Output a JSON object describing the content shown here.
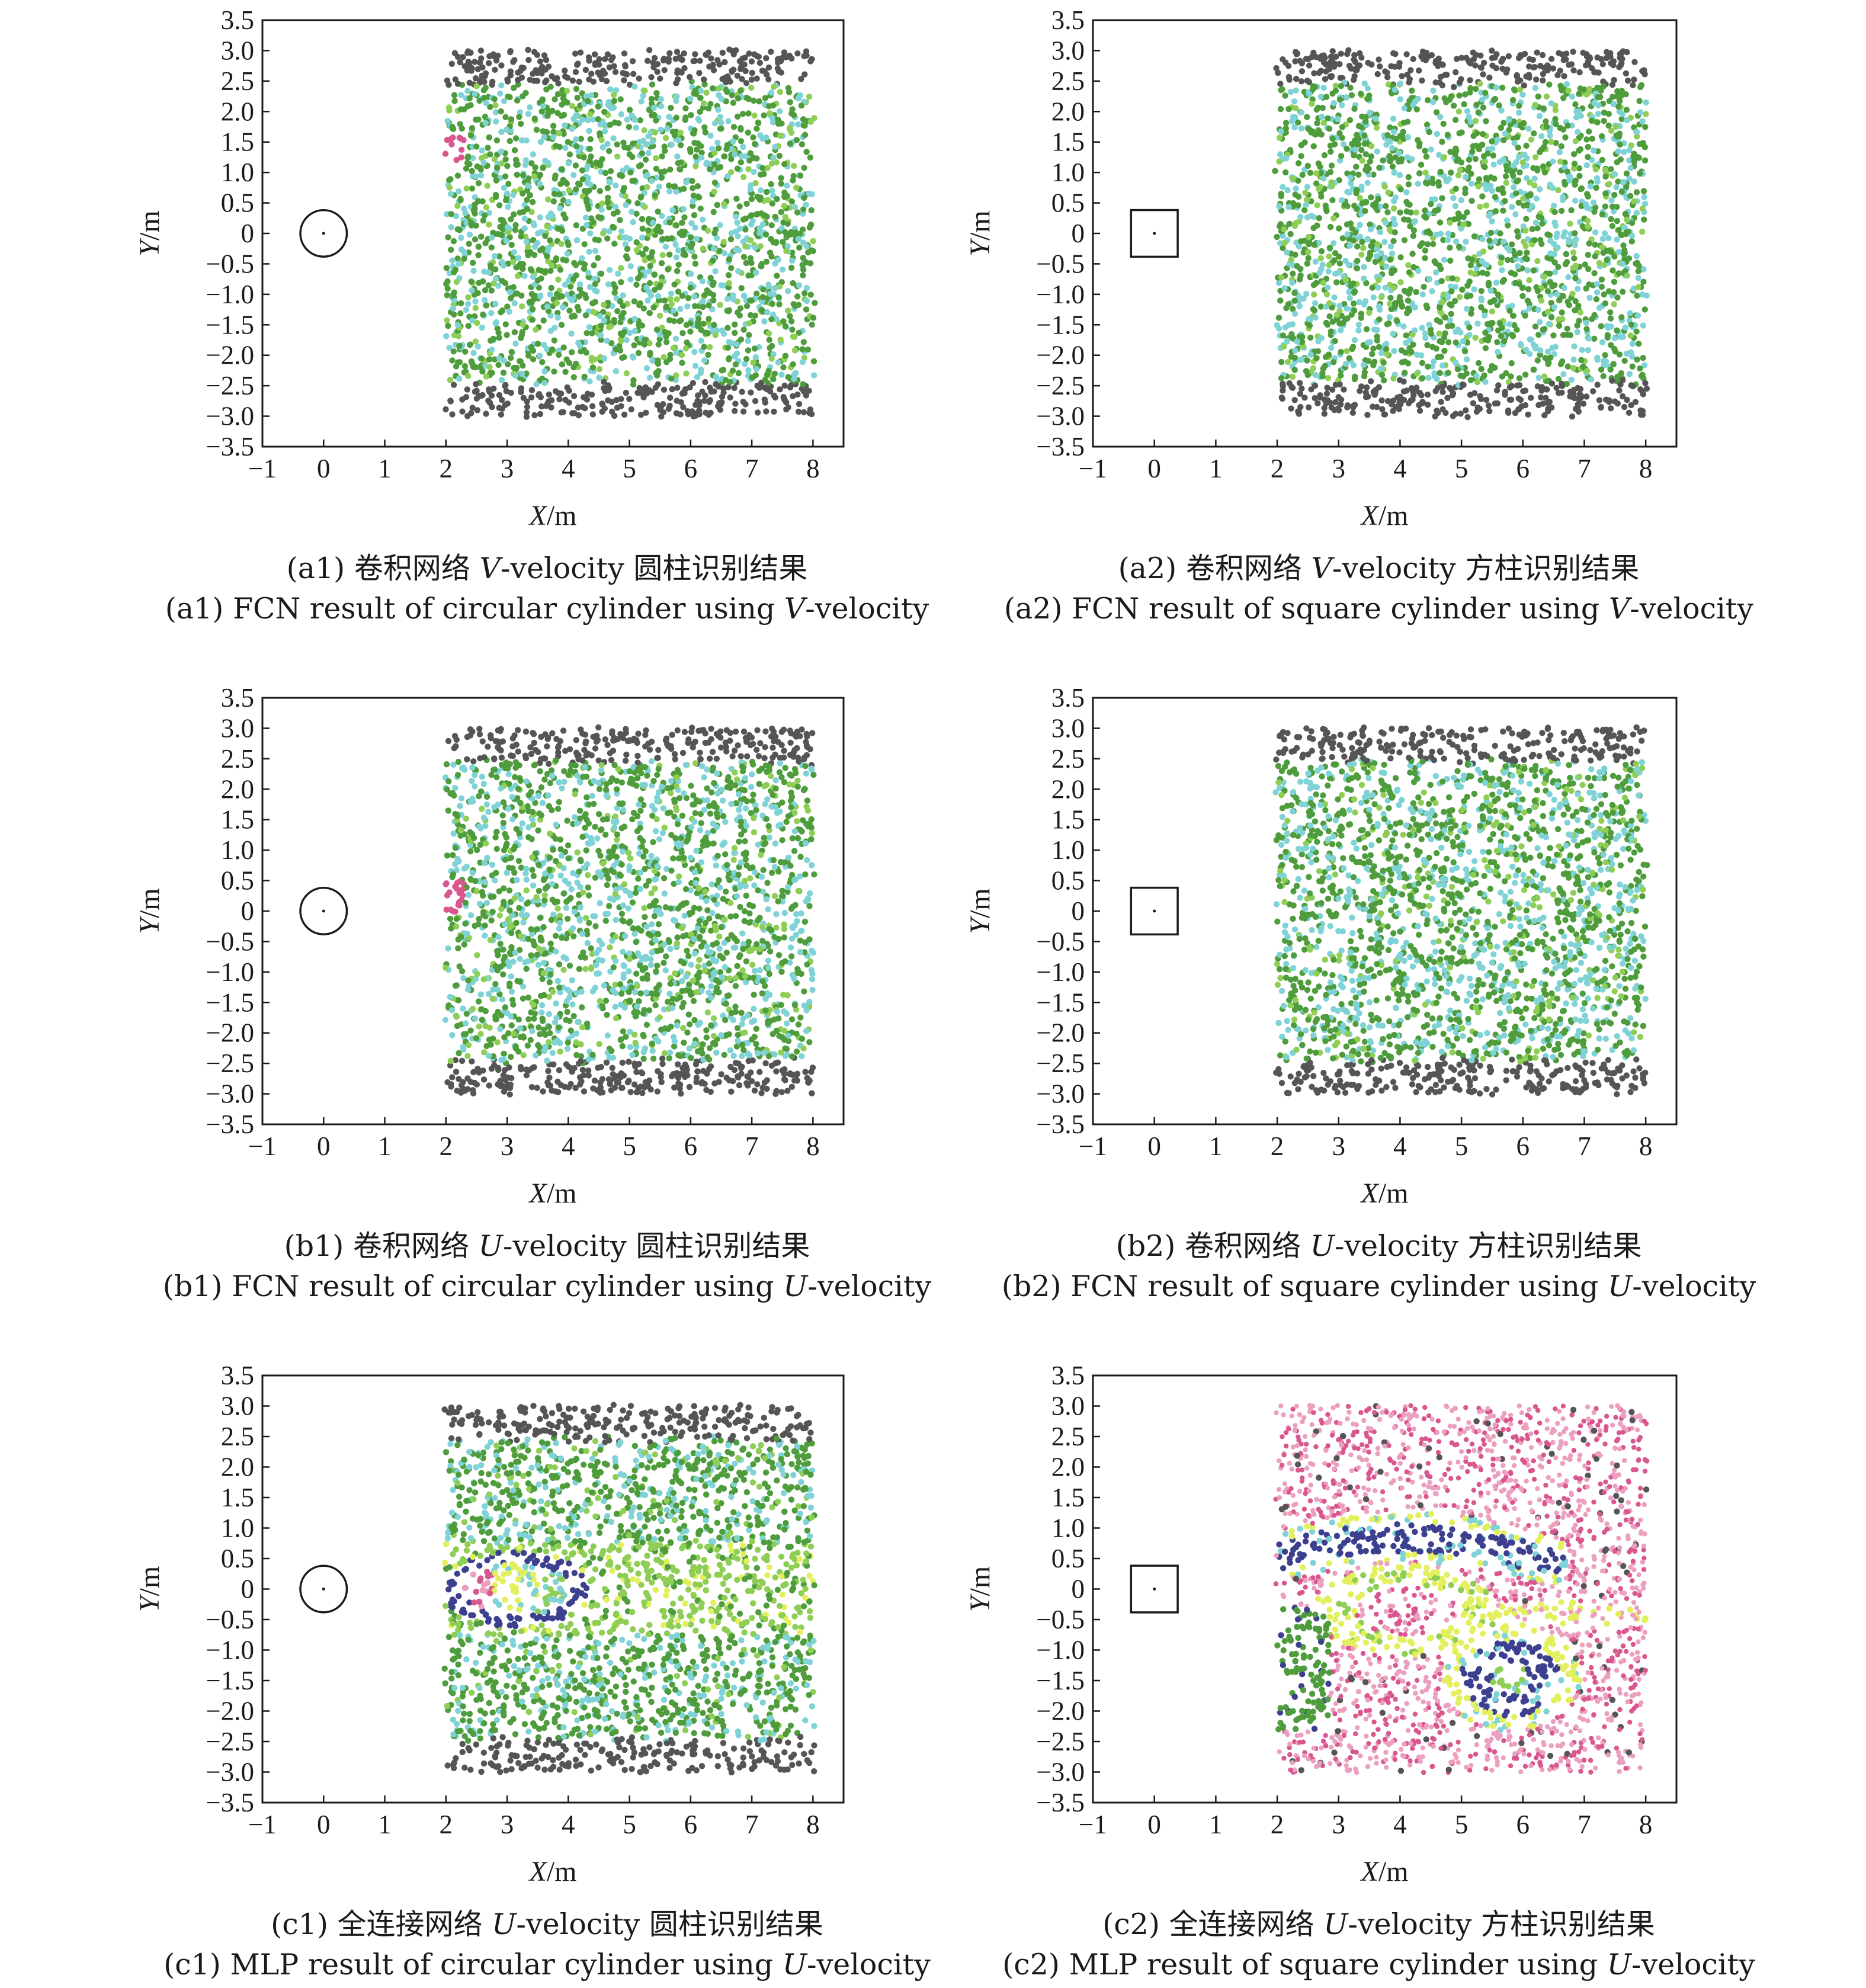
{
  "colors": {
    "boundary": "#555555",
    "green_dark": "#4e9c3c",
    "green_light": "#8fce55",
    "cyan": "#7fd3d6",
    "magenta": "#d9568e",
    "pink": "#eca0c0",
    "navy": "#3d3f8f",
    "yellow": "#e3f05e"
  },
  "chart_data": [
    {
      "id": "a1",
      "type": "scatter",
      "xlabel_main": "X",
      "xlabel_unit": "/m",
      "ylabel_main": "Y",
      "ylabel_unit": "/m",
      "xlim": [
        -1,
        8.5
      ],
      "ylim": [
        -3.5,
        3.5
      ],
      "xticks": [
        "−1",
        "0",
        "1",
        "2",
        "3",
        "4",
        "5",
        "6",
        "7",
        "8"
      ],
      "yticks": [
        "3.5",
        "3.0",
        "2.5",
        "2.0",
        "1.5",
        "1.0",
        "0.5",
        "0",
        "−0.5",
        "−1.0",
        "−1.5",
        "−2.0",
        "−2.5",
        "−3.0",
        "−3.5"
      ],
      "obstacle": {
        "shape": "circle",
        "center": [
          0,
          0
        ],
        "radius": 0.38
      },
      "sample_region": {
        "x": [
          2,
          8
        ],
        "y": [
          -3,
          3
        ]
      },
      "classes": [
        {
          "color": "boundary",
          "region": "|y| > 2.4"
        },
        {
          "color": "green_dark",
          "region": "interior"
        },
        {
          "color": "cyan",
          "region": "interior"
        },
        {
          "color": "magenta",
          "region": "small patch near x=2.1, y=1.4"
        }
      ],
      "caption_cn": "(a1) 卷积网络 ",
      "caption_cn_var": "V",
      "caption_cn_rest": "-velocity 圆柱识别结果",
      "caption_en": "(a1) FCN result of circular cylinder using ",
      "caption_en_var": "V",
      "caption_en_rest": "-velocity"
    },
    {
      "id": "a2",
      "type": "scatter",
      "xlabel_main": "X",
      "xlabel_unit": "/m",
      "ylabel_main": "Y",
      "ylabel_unit": "/m",
      "xlim": [
        -1,
        8.5
      ],
      "ylim": [
        -3.5,
        3.5
      ],
      "xticks": [
        "−1",
        "0",
        "1",
        "2",
        "3",
        "4",
        "5",
        "6",
        "7",
        "8"
      ],
      "yticks": [
        "3.5",
        "3.0",
        "2.5",
        "2.0",
        "1.5",
        "1.0",
        "0.5",
        "0",
        "−0.5",
        "−1.0",
        "−1.5",
        "−2.0",
        "−2.5",
        "−3.0",
        "−3.5"
      ],
      "obstacle": {
        "shape": "square",
        "center": [
          0,
          0
        ],
        "half_size": 0.38
      },
      "sample_region": {
        "x": [
          2,
          8
        ],
        "y": [
          -3,
          3
        ]
      },
      "classes": [
        {
          "color": "boundary",
          "region": "|y| > 2.4"
        },
        {
          "color": "green_dark",
          "region": "interior"
        },
        {
          "color": "cyan",
          "region": "interior"
        }
      ],
      "caption_cn": "(a2) 卷积网络 ",
      "caption_cn_var": "V",
      "caption_cn_rest": "-velocity 方柱识别结果",
      "caption_en": "(a2) FCN result of square cylinder using ",
      "caption_en_var": "V",
      "caption_en_rest": "-velocity"
    },
    {
      "id": "b1",
      "type": "scatter",
      "xlabel_main": "X",
      "xlabel_unit": "/m",
      "ylabel_main": "Y",
      "ylabel_unit": "/m",
      "xlim": [
        -1,
        8.5
      ],
      "ylim": [
        -3.5,
        3.5
      ],
      "xticks": [
        "−1",
        "0",
        "1",
        "2",
        "3",
        "4",
        "5",
        "6",
        "7",
        "8"
      ],
      "yticks": [
        "3.5",
        "3.0",
        "2.5",
        "2.0",
        "1.5",
        "1.0",
        "0.5",
        "0",
        "−0.5",
        "−1.0",
        "−1.5",
        "−2.0",
        "−2.5",
        "−3.0",
        "−3.5"
      ],
      "obstacle": {
        "shape": "circle",
        "center": [
          0,
          0
        ],
        "radius": 0.38
      },
      "sample_region": {
        "x": [
          2,
          8
        ],
        "y": [
          -3,
          3
        ]
      },
      "classes": [
        {
          "color": "boundary",
          "region": "|y| > 2.4"
        },
        {
          "color": "green_dark",
          "region": "interior"
        },
        {
          "color": "cyan",
          "region": "interior"
        },
        {
          "color": "magenta",
          "region": "small patch near x=2.1, y=0.2"
        }
      ],
      "caption_cn": "(b1) 卷积网络 ",
      "caption_cn_var": "U",
      "caption_cn_rest": "-velocity 圆柱识别结果",
      "caption_en": "(b1) FCN result of circular cylinder using ",
      "caption_en_var": "U",
      "caption_en_rest": "-velocity"
    },
    {
      "id": "b2",
      "type": "scatter",
      "xlabel_main": "X",
      "xlabel_unit": "/m",
      "ylabel_main": "Y",
      "ylabel_unit": "/m",
      "xlim": [
        -1,
        8.5
      ],
      "ylim": [
        -3.5,
        3.5
      ],
      "xticks": [
        "−1",
        "0",
        "1",
        "2",
        "3",
        "4",
        "5",
        "6",
        "7",
        "8"
      ],
      "yticks": [
        "3.5",
        "3.0",
        "2.5",
        "2.0",
        "1.5",
        "1.0",
        "0.5",
        "0",
        "−0.5",
        "−1.0",
        "−1.5",
        "−2.0",
        "−2.5",
        "−3.0",
        "−3.5"
      ],
      "obstacle": {
        "shape": "square",
        "center": [
          0,
          0
        ],
        "half_size": 0.38
      },
      "sample_region": {
        "x": [
          2,
          8
        ],
        "y": [
          -3,
          3
        ]
      },
      "classes": [
        {
          "color": "boundary",
          "region": "|y| > 2.4"
        },
        {
          "color": "green_dark",
          "region": "interior"
        },
        {
          "color": "cyan",
          "region": "interior"
        }
      ],
      "caption_cn": "(b2) 卷积网络 ",
      "caption_cn_var": "U",
      "caption_cn_rest": "-velocity 方柱识别结果",
      "caption_en": "(b2) FCN result of square cylinder using ",
      "caption_en_var": "U",
      "caption_en_rest": "-velocity"
    },
    {
      "id": "c1",
      "type": "scatter",
      "xlabel_main": "X",
      "xlabel_unit": "/m",
      "ylabel_main": "Y",
      "ylabel_unit": "/m",
      "xlim": [
        -1,
        8.5
      ],
      "ylim": [
        -3.5,
        3.5
      ],
      "xticks": [
        "−1",
        "0",
        "1",
        "2",
        "3",
        "4",
        "5",
        "6",
        "7",
        "8"
      ],
      "yticks": [
        "3.5",
        "3.0",
        "2.5",
        "2.0",
        "1.5",
        "1.0",
        "0.5",
        "0",
        "−0.5",
        "−1.0",
        "−1.5",
        "−2.0",
        "−2.5",
        "−3.0",
        "−3.5"
      ],
      "obstacle": {
        "shape": "circle",
        "center": [
          0,
          0
        ],
        "radius": 0.38
      },
      "sample_region": {
        "x": [
          2,
          8
        ],
        "y": [
          -3,
          3
        ]
      },
      "classes": [
        {
          "color": "boundary",
          "region": "|y| > 2.4"
        },
        {
          "color": "green_dark",
          "region": "outer field"
        },
        {
          "color": "green_light",
          "region": "wake band |y| < 0.8"
        },
        {
          "color": "navy",
          "region": "ring around recirculation bubble x 2–4.3, |y| < 0.6"
        },
        {
          "color": "magenta",
          "region": "bubble core x 2–2.8"
        },
        {
          "color": "yellow",
          "region": "bubble core x 2.6–3.4"
        }
      ],
      "caption_cn": "(c1) 全连接网络 ",
      "caption_cn_var": "U",
      "caption_cn_rest": "-velocity 圆柱识别结果",
      "caption_en": "(c1) MLP result of circular cylinder using ",
      "caption_en_var": "U",
      "caption_en_rest": "-velocity"
    },
    {
      "id": "c2",
      "type": "scatter",
      "xlabel_main": "X",
      "xlabel_unit": "/m",
      "ylabel_main": "Y",
      "ylabel_unit": "/m",
      "xlim": [
        -1,
        8.5
      ],
      "ylim": [
        -3.5,
        3.5
      ],
      "xticks": [
        "−1",
        "0",
        "1",
        "2",
        "3",
        "4",
        "5",
        "6",
        "7",
        "8"
      ],
      "yticks": [
        "3.5",
        "3.0",
        "2.5",
        "2.0",
        "1.5",
        "1.0",
        "0.5",
        "0",
        "−0.5",
        "−1.0",
        "−1.5",
        "−2.0",
        "−2.5",
        "−3.0",
        "−3.5"
      ],
      "obstacle": {
        "shape": "square",
        "center": [
          0,
          0
        ],
        "half_size": 0.38
      },
      "sample_region": {
        "x": [
          2,
          8
        ],
        "y": [
          -3,
          3
        ]
      },
      "classes": [
        {
          "color": "pink",
          "region": "upper and lower field"
        },
        {
          "color": "navy",
          "region": "upper vortex band around x 2–6.5, y 0–1; lower vortex around x 5.8, y −1.5"
        },
        {
          "color": "yellow",
          "region": "shells around vortices"
        },
        {
          "color": "magenta",
          "region": "core regions"
        },
        {
          "color": "green_dark",
          "region": "left near-wake x 2–3, y −2.3 to −0.3"
        }
      ],
      "caption_cn": "(c2) 全连接网络 ",
      "caption_cn_var": "U",
      "caption_cn_rest": "-velocity 方柱识别结果",
      "caption_en": "(c2) MLP result of square cylinder using ",
      "caption_en_var": "U",
      "caption_en_rest": "-velocity"
    }
  ]
}
